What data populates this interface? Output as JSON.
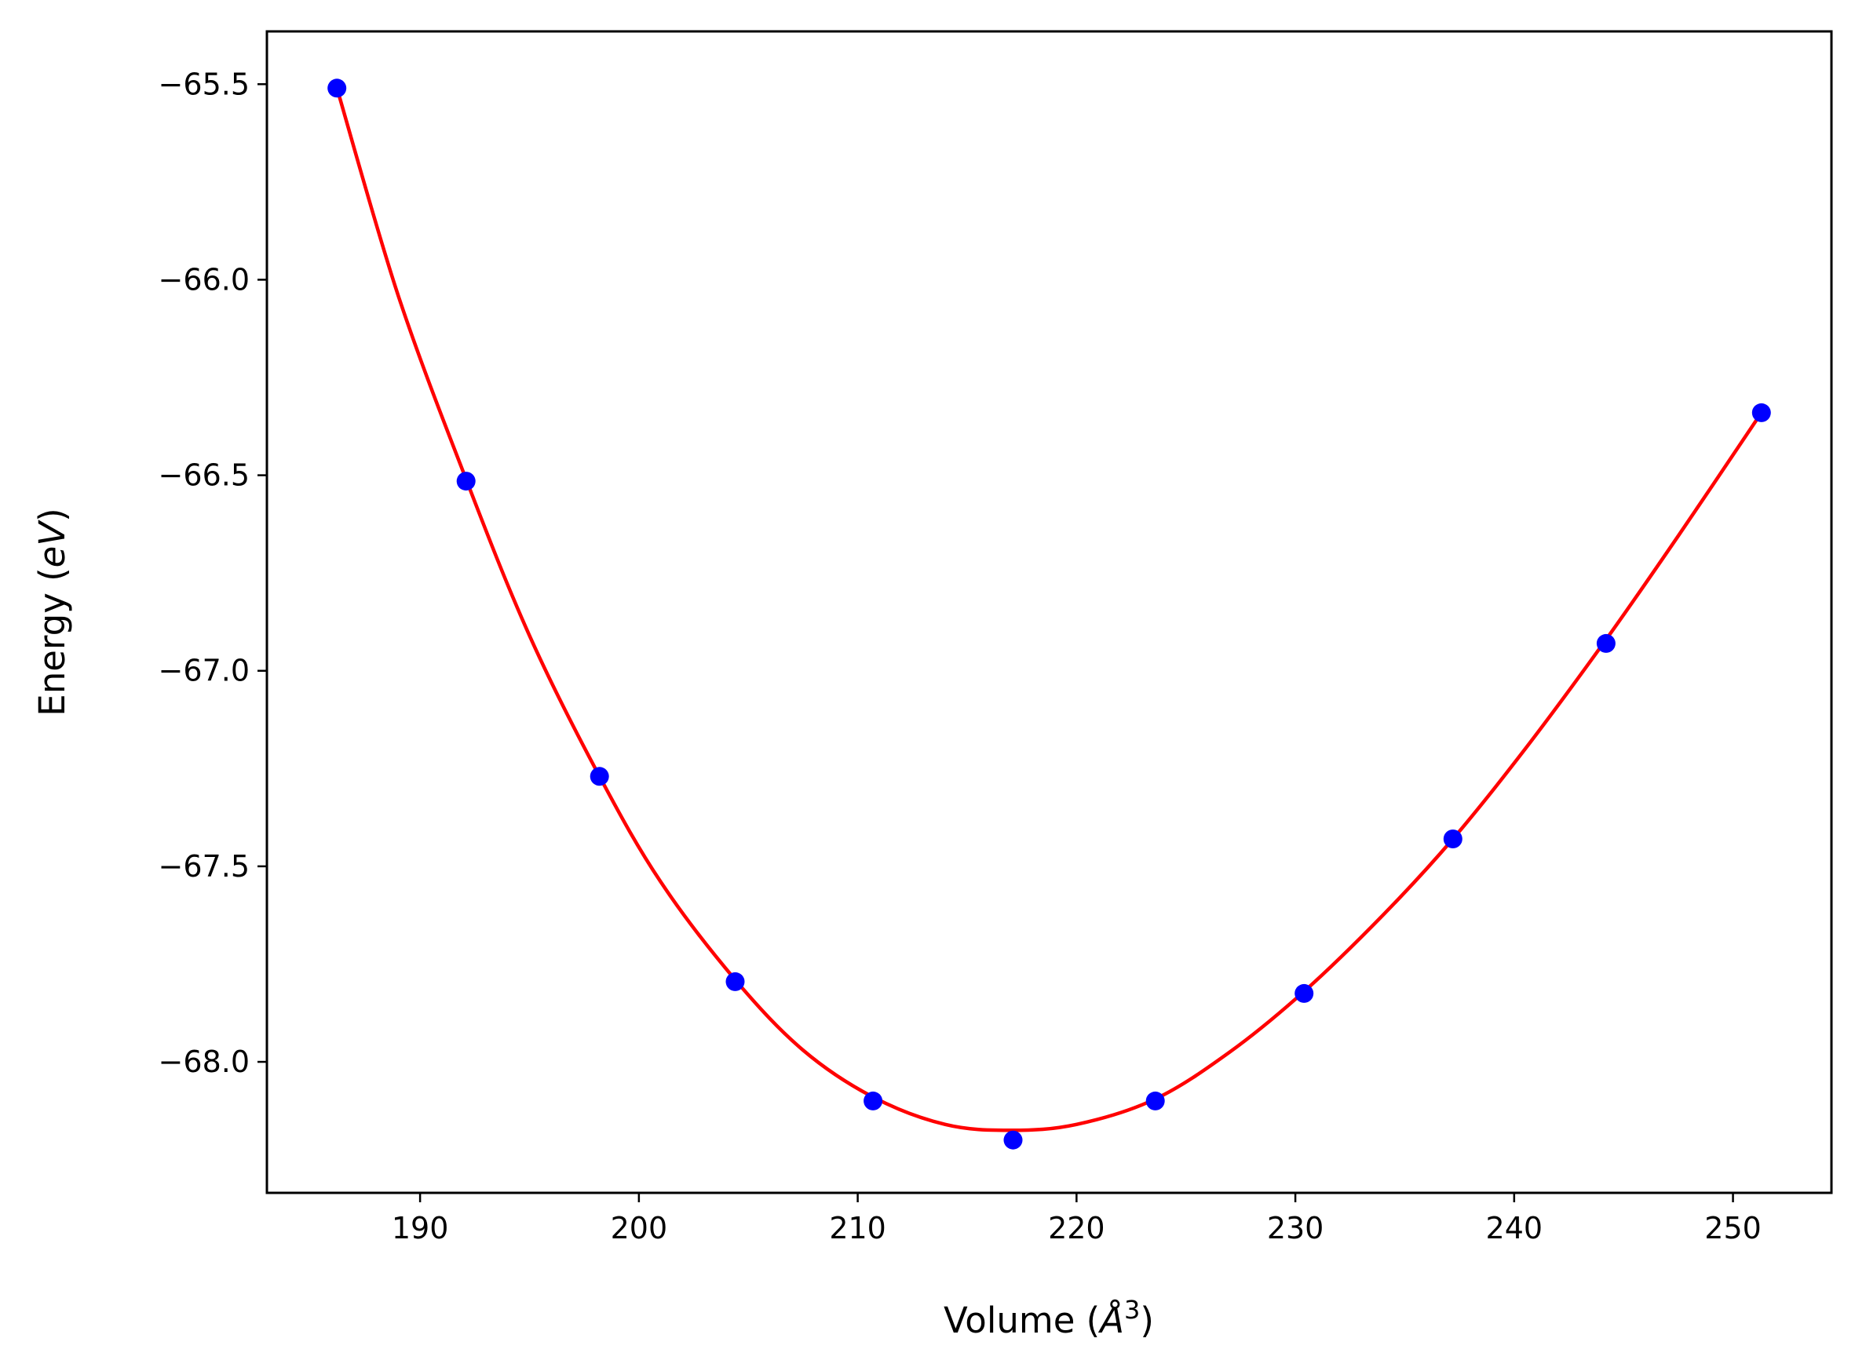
{
  "chart_data": {
    "type": "scatter",
    "xlabel": "Volume (Å³)",
    "xlabel_parts": {
      "prefix": "Volume (",
      "unit": "Å",
      "exponent": "3",
      "suffix": ")"
    },
    "ylabel": "Energy (eV)",
    "ylabel_parts": {
      "prefix": "Energy (",
      "unit": "eV",
      "suffix": ")"
    },
    "xlim": [
      183.0,
      254.5
    ],
    "ylim": [
      -68.335,
      -65.365
    ],
    "x_ticks": [
      190,
      200,
      210,
      220,
      230,
      240,
      250
    ],
    "x_tick_labels": [
      "190",
      "200",
      "210",
      "220",
      "230",
      "240",
      "250"
    ],
    "y_ticks": [
      -65.5,
      -66.0,
      -66.5,
      -67.0,
      -67.5,
      -68.0
    ],
    "y_tick_labels": [
      "−65.5",
      "−66.0",
      "−66.5",
      "−67.0",
      "−67.5",
      "−68.0"
    ],
    "grid": false,
    "series": [
      {
        "kind": "points",
        "color": "#0000ff",
        "x": [
          186.2,
          192.1,
          198.2,
          204.4,
          210.7,
          217.1,
          223.6,
          230.4,
          237.2,
          244.2,
          251.3
        ],
        "y": [
          -65.51,
          -66.515,
          -67.27,
          -67.795,
          -68.1,
          -68.2,
          -68.1,
          -67.825,
          -67.43,
          -66.93,
          -66.34
        ]
      },
      {
        "kind": "fit-curve",
        "color": "#ff0000",
        "x": [
          186.2,
          189.0,
          192.1,
          195.0,
          198.2,
          201.0,
          204.4,
          207.5,
          210.7,
          214.0,
          217.0,
          220.0,
          223.6,
          227.0,
          230.4,
          234.0,
          237.2,
          240.5,
          244.2,
          247.5,
          251.3
        ],
        "y": [
          -65.51,
          -66.04,
          -66.51,
          -66.91,
          -67.27,
          -67.54,
          -67.79,
          -67.97,
          -68.09,
          -68.16,
          -68.175,
          -68.16,
          -68.095,
          -67.975,
          -67.82,
          -67.625,
          -67.43,
          -67.2,
          -66.92,
          -66.655,
          -66.34
        ]
      }
    ]
  }
}
